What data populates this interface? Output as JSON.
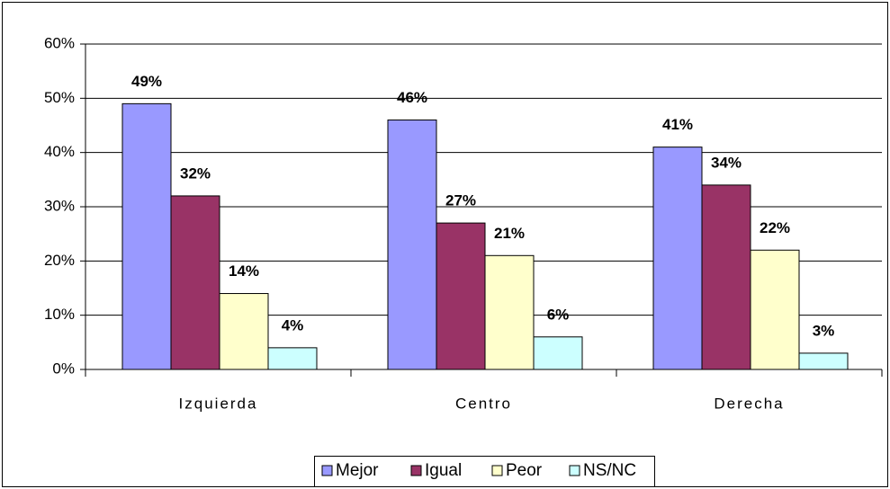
{
  "chart_data": {
    "type": "bar",
    "categories": [
      "Izquierda",
      "Centro",
      "Derecha"
    ],
    "series": [
      {
        "name": "Mejor",
        "color": "#9999ff",
        "values": [
          49,
          46,
          41
        ],
        "value_labels": [
          "49%",
          "46%",
          "41%"
        ]
      },
      {
        "name": "Igual",
        "color": "#993366",
        "values": [
          32,
          27,
          34
        ],
        "value_labels": [
          "32%",
          "27%",
          "34%"
        ]
      },
      {
        "name": "Peor",
        "color": "#ffffcc",
        "values": [
          14,
          21,
          22
        ],
        "value_labels": [
          "14%",
          "21%",
          "22%"
        ]
      },
      {
        "name": "NS/NC",
        "color": "#ccffff",
        "values": [
          4,
          6,
          3
        ],
        "value_labels": [
          "4%",
          "6%",
          "3%"
        ]
      }
    ],
    "ylim": [
      0,
      60
    ],
    "yticks": [
      {
        "value": 0,
        "label": "0%"
      },
      {
        "value": 10,
        "label": "10%"
      },
      {
        "value": 20,
        "label": "20%"
      },
      {
        "value": 30,
        "label": "30%"
      },
      {
        "value": 40,
        "label": "40%"
      },
      {
        "value": 50,
        "label": "50%"
      },
      {
        "value": 60,
        "label": "60%"
      }
    ],
    "grid": true,
    "legend": "bottom"
  }
}
